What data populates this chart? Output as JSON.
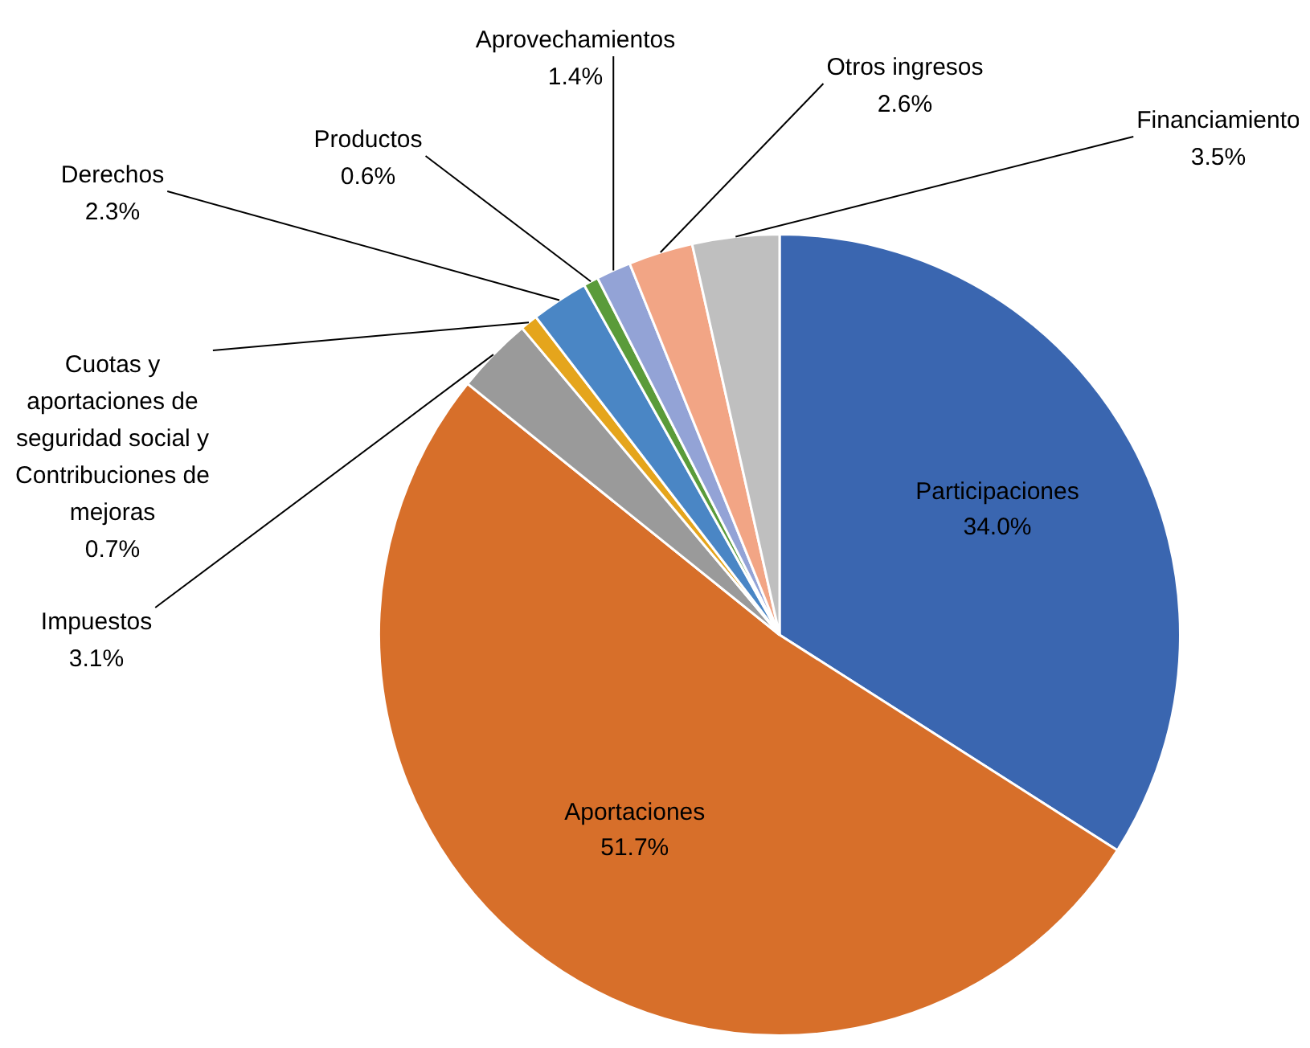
{
  "chart_data": {
    "type": "pie",
    "categories": [
      "Participaciones",
      "Aportaciones",
      "Impuestos",
      "Cuotas y aportaciones de seguridad social y Contribuciones de mejoras",
      "Derechos",
      "Productos",
      "Aprovechamientos",
      "Otros ingresos",
      "Financiamiento"
    ],
    "values": [
      34.0,
      51.7,
      3.1,
      0.7,
      2.3,
      0.6,
      1.4,
      2.6,
      3.5
    ],
    "value_labels": [
      "34.0%",
      "51.7%",
      "3.1%",
      "0.7%",
      "2.3%",
      "0.6%",
      "1.4%",
      "2.6%",
      "3.5%"
    ],
    "colors": [
      "#3a66b0",
      "#d76f2a",
      "#9a9a9a",
      "#e5a51c",
      "#4a86c5",
      "#5a9b3a",
      "#93a3d6",
      "#f2a585",
      "#bfbfbf"
    ],
    "legend": false
  }
}
